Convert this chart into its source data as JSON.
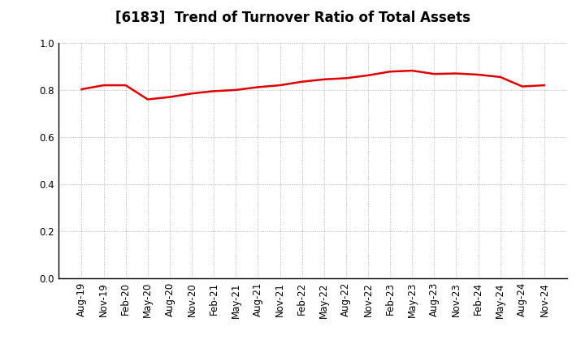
{
  "title": "[6183]  Trend of Turnover Ratio of Total Assets",
  "x_labels": [
    "Aug-19",
    "Nov-19",
    "Feb-20",
    "May-20",
    "Aug-20",
    "Nov-20",
    "Feb-21",
    "May-21",
    "Aug-21",
    "Nov-21",
    "Feb-22",
    "May-22",
    "Aug-22",
    "Nov-22",
    "Feb-23",
    "May-23",
    "Aug-23",
    "Nov-23",
    "Feb-24",
    "May-24",
    "Aug-24",
    "Nov-24"
  ],
  "y_values": [
    0.803,
    0.82,
    0.82,
    0.76,
    0.77,
    0.785,
    0.795,
    0.8,
    0.812,
    0.82,
    0.835,
    0.845,
    0.85,
    0.862,
    0.878,
    0.882,
    0.868,
    0.87,
    0.865,
    0.855,
    0.815,
    0.82
  ],
  "line_color": "#dd0000",
  "line_width": 1.8,
  "ylim": [
    0.0,
    1.0
  ],
  "yticks": [
    0.0,
    0.2,
    0.4,
    0.6,
    0.8,
    1.0
  ],
  "background_color": "#ffffff",
  "grid_color": "#aaaaaa",
  "title_fontsize": 12,
  "axis_fontsize": 8.5
}
